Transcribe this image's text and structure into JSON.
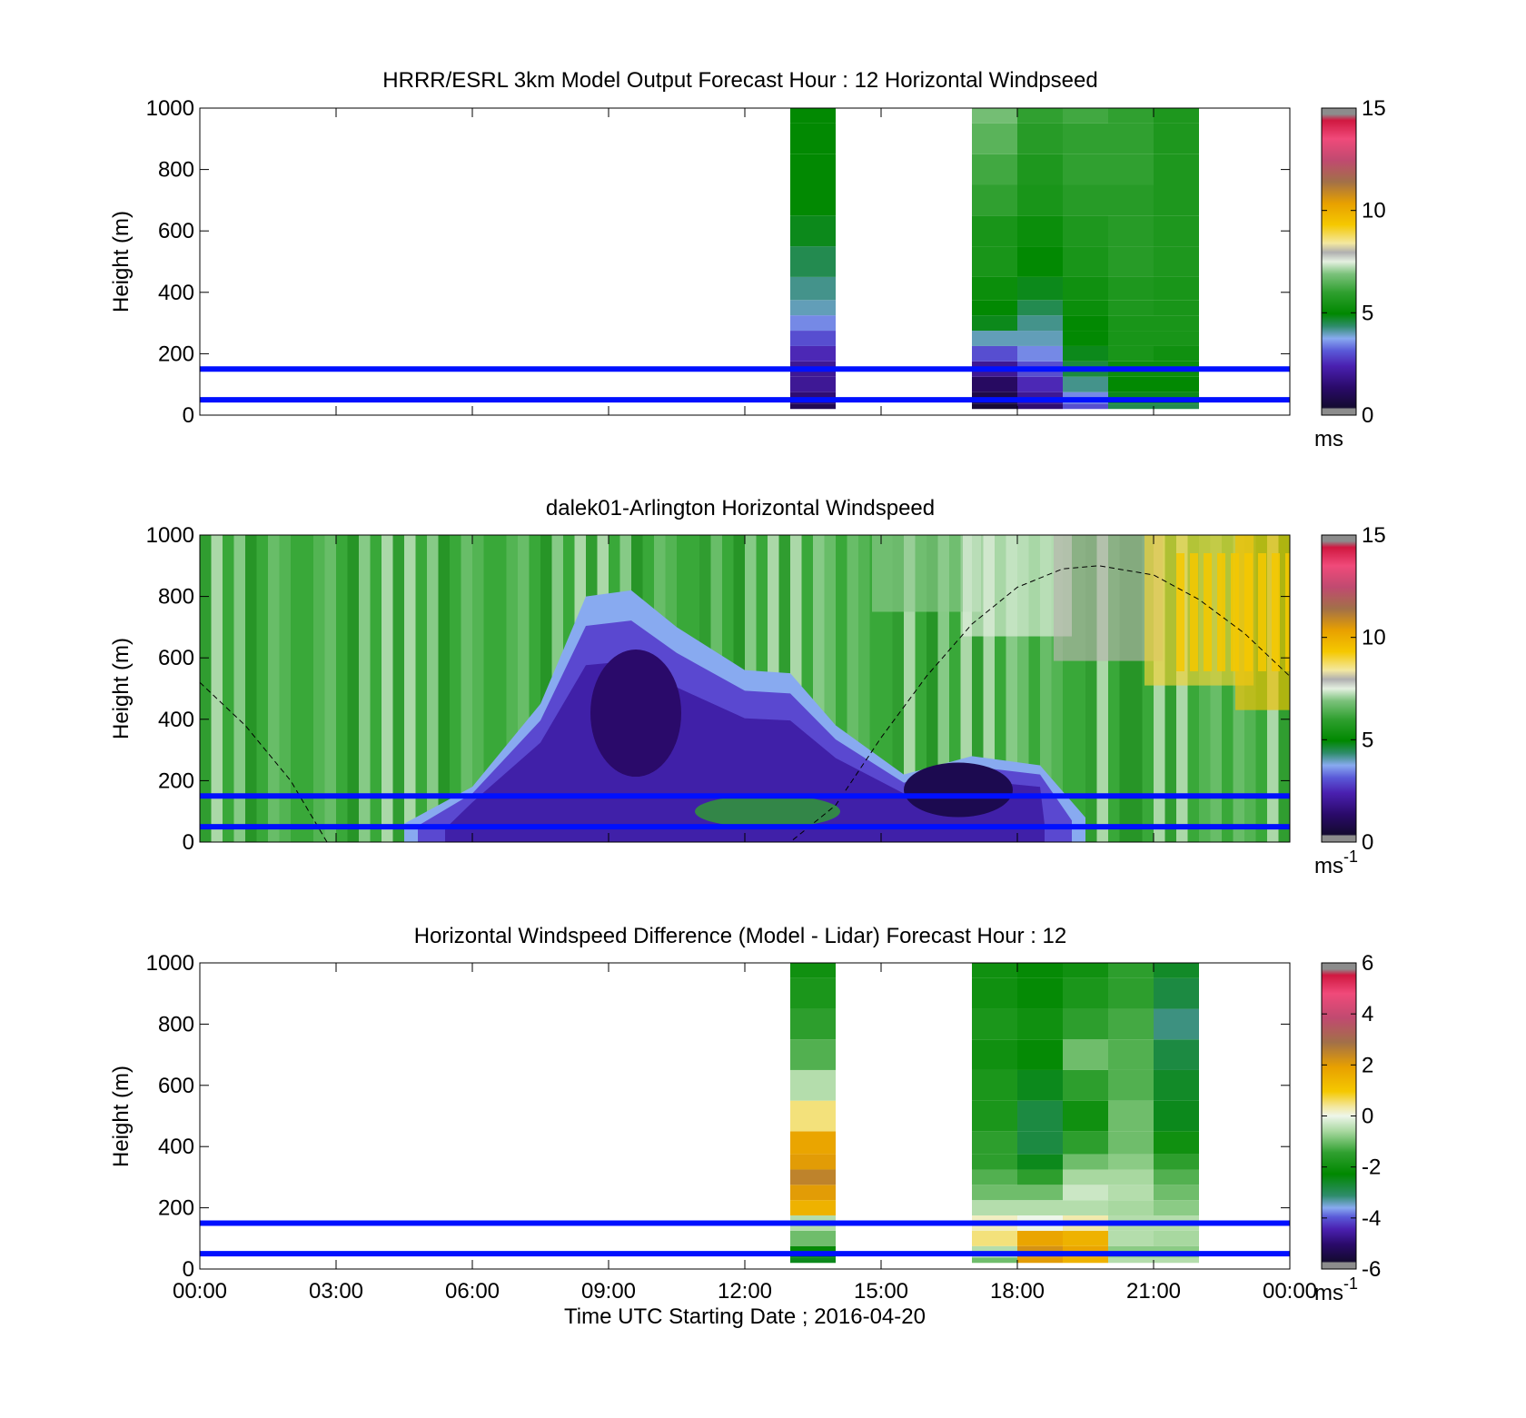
{
  "figure": {
    "xlabel": "Time UTC  Starting Date ; 2016-04-20",
    "x_tick_labels": [
      "00:00",
      "03:00",
      "06:00",
      "09:00",
      "12:00",
      "15:00",
      "18:00",
      "21:00",
      "00:00"
    ]
  },
  "colors": {
    "reference_line": "#0010ff",
    "axes": "#000000",
    "background": "#ffffff"
  },
  "chart_data": [
    {
      "type": "heatmap",
      "title": "HRRR/ESRL 3km Model Output   Forecast Hour : 12 Horizontal Windpseed",
      "xlabel": "",
      "ylabel": "Height (m)",
      "xlim_hours": [
        0,
        24
      ],
      "ylim": [
        0,
        1000
      ],
      "y_ticks": [
        0,
        200,
        400,
        600,
        800,
        1000
      ],
      "colorbar": {
        "min": 0,
        "max": 15,
        "ticks": [
          0,
          5,
          10,
          15
        ],
        "unit": "ms",
        "unit_sup": ""
      },
      "reference_lines_m": [
        50,
        150
      ],
      "data_columns_hours": [
        {
          "start": 13,
          "end": 14
        },
        {
          "start": 17,
          "end": 18
        },
        {
          "start": 18,
          "end": 19
        },
        {
          "start": 19,
          "end": 20
        },
        {
          "start": 20,
          "end": 21
        },
        {
          "start": 21,
          "end": 22
        }
      ],
      "profiles_ms": [
        [
          1.0,
          1.5,
          2.0,
          2.0,
          2.5,
          3.0,
          3.5,
          4.0,
          4.2,
          4.5,
          4.8,
          5.0,
          5.0,
          5.0,
          5.0
        ],
        [
          0.5,
          0.8,
          1.2,
          2.0,
          3.0,
          4.0,
          4.8,
          5.0,
          5.2,
          5.5,
          5.5,
          6.0,
          6.2,
          6.5,
          6.8
        ],
        [
          1.5,
          2.0,
          2.5,
          3.0,
          3.5,
          4.0,
          4.2,
          4.5,
          4.8,
          5.0,
          5.2,
          5.5,
          5.6,
          5.8,
          6.0
        ],
        [
          3.0,
          3.5,
          4.2,
          4.6,
          4.8,
          5.0,
          5.0,
          5.2,
          5.3,
          5.5,
          5.6,
          5.8,
          6.0,
          6.0,
          6.2
        ],
        [
          4.5,
          4.8,
          5.0,
          5.2,
          5.5,
          5.5,
          5.5,
          5.6,
          5.6,
          5.8,
          5.8,
          5.8,
          6.0,
          6.0,
          6.0
        ],
        [
          4.5,
          4.8,
          5.0,
          5.2,
          5.3,
          5.5,
          5.5,
          5.5,
          5.5,
          5.6,
          5.6,
          5.6,
          5.6,
          5.6,
          5.6
        ]
      ],
      "profile_heights_m": [
        25,
        50,
        100,
        150,
        200,
        250,
        300,
        350,
        400,
        500,
        600,
        700,
        800,
        900,
        1000
      ]
    },
    {
      "type": "heatmap",
      "title": "dalek01-Arlington  Horizontal Windspeed",
      "xlabel": "",
      "ylabel": "Height (m)",
      "xlim_hours": [
        0,
        24
      ],
      "ylim": [
        0,
        1000
      ],
      "y_ticks": [
        0,
        200,
        400,
        600,
        800,
        1000
      ],
      "colorbar": {
        "min": 0,
        "max": 15,
        "ticks": [
          0,
          5,
          10,
          15
        ],
        "unit": "ms",
        "unit_sup": "-1"
      },
      "reference_lines_m": [
        50,
        150
      ],
      "low_wind_region": {
        "time_hours": [
          4.5,
          6.0,
          7.5,
          8.5,
          9.5,
          10.5,
          12.0,
          13.0,
          14.0,
          15.5,
          17.0,
          18.5,
          19.5
        ],
        "top_height_m": [
          60,
          180,
          450,
          800,
          820,
          700,
          560,
          550,
          380,
          220,
          280,
          250,
          80
        ],
        "core_speed_ms": 1.0
      },
      "upper_high_wind_region": {
        "time_hours": [
          16,
          18,
          20,
          22,
          24
        ],
        "speed_ms": [
          7,
          7.5,
          8,
          9,
          9.5
        ]
      },
      "dashed_curve": {
        "x_hours": [
          0.0,
          1.0,
          2.0,
          2.8,
          11.0,
          12.0,
          13.0,
          14.0,
          15.0,
          16.0,
          17.0,
          18.0,
          19.0,
          19.8,
          21.0,
          22.0,
          23.0,
          24.0
        ],
        "y_m": [
          520,
          380,
          200,
          0,
          0,
          0,
          0,
          120,
          340,
          540,
          710,
          830,
          890,
          900,
          870,
          790,
          680,
          540
        ]
      }
    },
    {
      "type": "heatmap",
      "title": "Horizontal Windspeed Difference (Model - Lidar) Forecast Hour : 12",
      "xlabel": "Time UTC  Starting Date ; 2016-04-20",
      "ylabel": "Height (m)",
      "xlim_hours": [
        0,
        24
      ],
      "ylim": [
        0,
        1000
      ],
      "y_ticks": [
        0,
        200,
        400,
        600,
        800,
        1000
      ],
      "colorbar": {
        "min": -6,
        "max": 6,
        "ticks": [
          -6,
          -4,
          -2,
          0,
          2,
          4,
          6
        ],
        "unit": "ms",
        "unit_sup": "-1"
      },
      "reference_lines_m": [
        50,
        150
      ],
      "data_columns_hours": [
        {
          "start": 13,
          "end": 14
        },
        {
          "start": 17,
          "end": 18
        },
        {
          "start": 18,
          "end": 19
        },
        {
          "start": 19,
          "end": 20
        },
        {
          "start": 20,
          "end": 21
        },
        {
          "start": 21,
          "end": 22
        }
      ],
      "profiles_ms": [
        [
          -2.5,
          -2.2,
          -1.0,
          -0.5,
          1.5,
          2.0,
          2.5,
          2.0,
          1.8,
          0.5,
          -0.5,
          -1.2,
          -1.5,
          -1.8,
          -2.0
        ],
        [
          -1.0,
          -0.5,
          0.5,
          0.2,
          -0.5,
          -1.0,
          -1.2,
          -1.5,
          -1.5,
          -1.8,
          -1.8,
          -2.0,
          -1.8,
          -2.0,
          -2.0
        ],
        [
          2.0,
          2.2,
          1.8,
          0.0,
          -0.5,
          -1.0,
          -1.5,
          -2.5,
          -2.8,
          -2.8,
          -2.5,
          -2.2,
          -2.0,
          -2.2,
          -2.2
        ],
        [
          1.5,
          1.8,
          1.5,
          0.3,
          -0.5,
          -0.3,
          -0.6,
          -1.0,
          -1.5,
          -2.0,
          -1.5,
          -1.0,
          -1.5,
          -1.8,
          -2.0
        ],
        [
          -0.5,
          -0.8,
          -0.5,
          -0.5,
          -0.6,
          -0.5,
          -0.6,
          -0.8,
          -1.0,
          -1.0,
          -1.2,
          -1.2,
          -1.3,
          -1.5,
          -1.5
        ],
        [
          -0.5,
          -0.8,
          -0.6,
          -0.5,
          -0.8,
          -1.0,
          -1.2,
          -1.5,
          -2.0,
          -2.5,
          -2.6,
          -2.8,
          -3.2,
          -2.8,
          -2.6
        ]
      ],
      "profile_heights_m": [
        25,
        50,
        100,
        150,
        200,
        250,
        300,
        350,
        400,
        500,
        600,
        700,
        800,
        900,
        1000
      ]
    }
  ]
}
